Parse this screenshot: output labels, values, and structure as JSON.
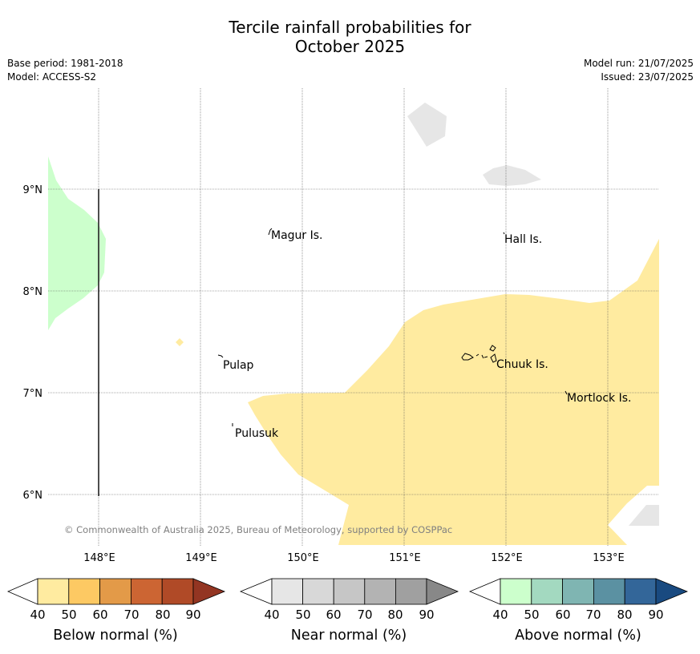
{
  "title_line1": "Tercile rainfall probabilities for",
  "title_line2": "October 2025",
  "meta_left": {
    "base_period": "Base period: 1981-2018",
    "model": "Model: ACCESS-S2"
  },
  "meta_right": {
    "model_run": "Model run: 21/07/2025",
    "issued": "Issued: 23/07/2025"
  },
  "map": {
    "lat_labels": [
      "9°N",
      "8°N",
      "7°N",
      "6°N"
    ],
    "lon_labels": [
      "148°E",
      "149°E",
      "150°E",
      "151°E",
      "152°E",
      "153°E"
    ],
    "places": [
      "Magur Is.",
      "Hall Is.",
      "Pulap",
      "Chuuk Is.",
      "Mortlock Is.",
      "Pulusuk"
    ],
    "copyright": "© Commonwealth of Australia 2025, Bureau of Meteorology, supported by COSPPac",
    "colors": {
      "below_normal_fill": "#ffeba0",
      "near_normal_fill": "#e6e6e6",
      "above_normal_fill": "#ccffcc"
    }
  },
  "colorbars": [
    {
      "label": "Below normal (%)",
      "ticks": [
        "40",
        "50",
        "60",
        "70",
        "80",
        "90"
      ],
      "colors": [
        "#ffeba0",
        "#fdc963",
        "#e39a48",
        "#cc6533",
        "#b04a27",
        "#933522"
      ]
    },
    {
      "label": "Near normal (%)",
      "ticks": [
        "40",
        "50",
        "60",
        "70",
        "80",
        "90"
      ],
      "colors": [
        "#e6e6e6",
        "#d8d8d8",
        "#c6c6c6",
        "#b3b3b3",
        "#a0a0a0",
        "#888888"
      ]
    },
    {
      "label": "Above normal (%)",
      "ticks": [
        "40",
        "50",
        "60",
        "70",
        "80",
        "90"
      ],
      "colors": [
        "#ccffcc",
        "#a3d9c0",
        "#7fb5b2",
        "#5b91a2",
        "#336699",
        "#194a80"
      ]
    }
  ]
}
